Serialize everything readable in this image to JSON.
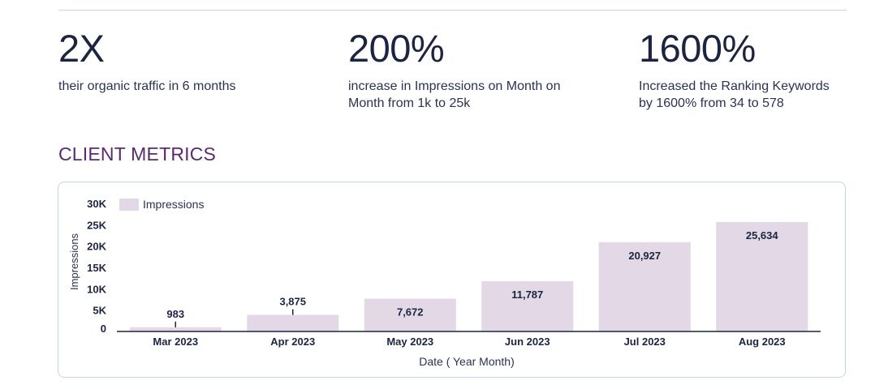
{
  "stats": [
    {
      "value": "2X",
      "description": "their organic traffic in 6 months"
    },
    {
      "value": "200%",
      "description": "increase in Impressions on Month on Month from 1k to 25k"
    },
    {
      "value": "1600%",
      "description": "Increased the Ranking Keywords by 1600% from 34 to 578"
    }
  ],
  "section_title": "CLIENT METRICS",
  "colors": {
    "bar": "#e2d8e6",
    "title": "#5a2a6e",
    "text": "#1c2440",
    "border": "#c6d4e3"
  },
  "chart_data": {
    "type": "bar",
    "title": "",
    "xlabel": "Date ( Year Month)",
    "ylabel": "Impressions",
    "categories": [
      "Mar 2023",
      "Apr 2023",
      "May 2023",
      "Jun 2023",
      "Jul 2023",
      "Aug 2023"
    ],
    "series": [
      {
        "name": "Impressions",
        "values": [
          983,
          3875,
          7672,
          11787,
          20927,
          25634
        ]
      }
    ],
    "data_labels": [
      "983",
      "3,875",
      "7,672",
      "11,787",
      "20,927",
      "25,634"
    ],
    "y_ticks": [
      {
        "value": 0,
        "label": "0"
      },
      {
        "value": 5000,
        "label": "5K"
      },
      {
        "value": 10000,
        "label": "10K"
      },
      {
        "value": 15000,
        "label": "15K"
      },
      {
        "value": 20000,
        "label": "20K"
      },
      {
        "value": 25000,
        "label": "25K"
      },
      {
        "value": 30000,
        "label": "30K"
      }
    ],
    "ylim": [
      0,
      30000
    ],
    "legend": {
      "position": "top-left"
    },
    "grid": false
  }
}
